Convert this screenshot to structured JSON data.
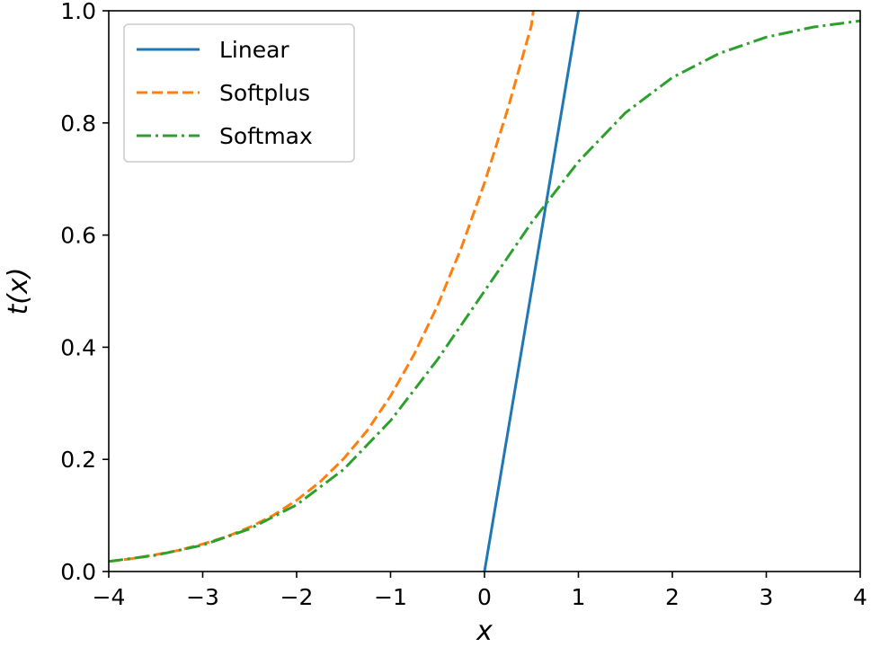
{
  "chart_data": {
    "type": "line",
    "title": "",
    "xlabel": "x",
    "ylabel": "t(x)",
    "xlim": [
      -4,
      4
    ],
    "ylim": [
      0,
      1
    ],
    "xticks": [
      -4,
      -3,
      -2,
      -1,
      0,
      1,
      2,
      3,
      4
    ],
    "yticks": [
      0,
      0.2,
      0.4,
      0.6,
      0.8,
      1
    ],
    "xtick_labels": [
      "−4",
      "−3",
      "−2",
      "−1",
      "0",
      "1",
      "2",
      "3",
      "4"
    ],
    "ytick_labels": [
      "0.0",
      "0.2",
      "0.4",
      "0.6",
      "0.8",
      "1.0"
    ],
    "grid": false,
    "legend": {
      "position": "upper left",
      "entries": [
        "Linear",
        "Softplus",
        "Softmax"
      ]
    },
    "series": [
      {
        "name": "Linear",
        "color": "#1f77b4",
        "style": "solid",
        "x": [
          0,
          0.25,
          0.5,
          0.75,
          1.0
        ],
        "y": [
          0,
          0.25,
          0.5,
          0.75,
          1.0
        ]
      },
      {
        "name": "Softplus",
        "color": "#ff7f0e",
        "style": "dashed",
        "x": [
          -4,
          -3.75,
          -3.5,
          -3.25,
          -3,
          -2.75,
          -2.5,
          -2.25,
          -2,
          -1.75,
          -1.5,
          -1.25,
          -1,
          -0.75,
          -0.5,
          -0.25,
          0,
          0.25,
          0.5,
          0.52
        ],
        "y": [
          0.018,
          0.023,
          0.03,
          0.038,
          0.049,
          0.062,
          0.079,
          0.1,
          0.127,
          0.16,
          0.201,
          0.251,
          0.313,
          0.387,
          0.474,
          0.576,
          0.693,
          0.826,
          0.974,
          1.0
        ]
      },
      {
        "name": "Softmax",
        "color": "#2ca02c",
        "style": "dashdot",
        "x": [
          -4,
          -3.5,
          -3,
          -2.5,
          -2,
          -1.5,
          -1,
          -0.5,
          0,
          0.5,
          1,
          1.5,
          2,
          2.5,
          3,
          3.5,
          4
        ],
        "y": [
          0.018,
          0.029,
          0.047,
          0.076,
          0.119,
          0.182,
          0.269,
          0.378,
          0.5,
          0.622,
          0.731,
          0.818,
          0.881,
          0.924,
          0.953,
          0.971,
          0.982
        ]
      }
    ]
  }
}
